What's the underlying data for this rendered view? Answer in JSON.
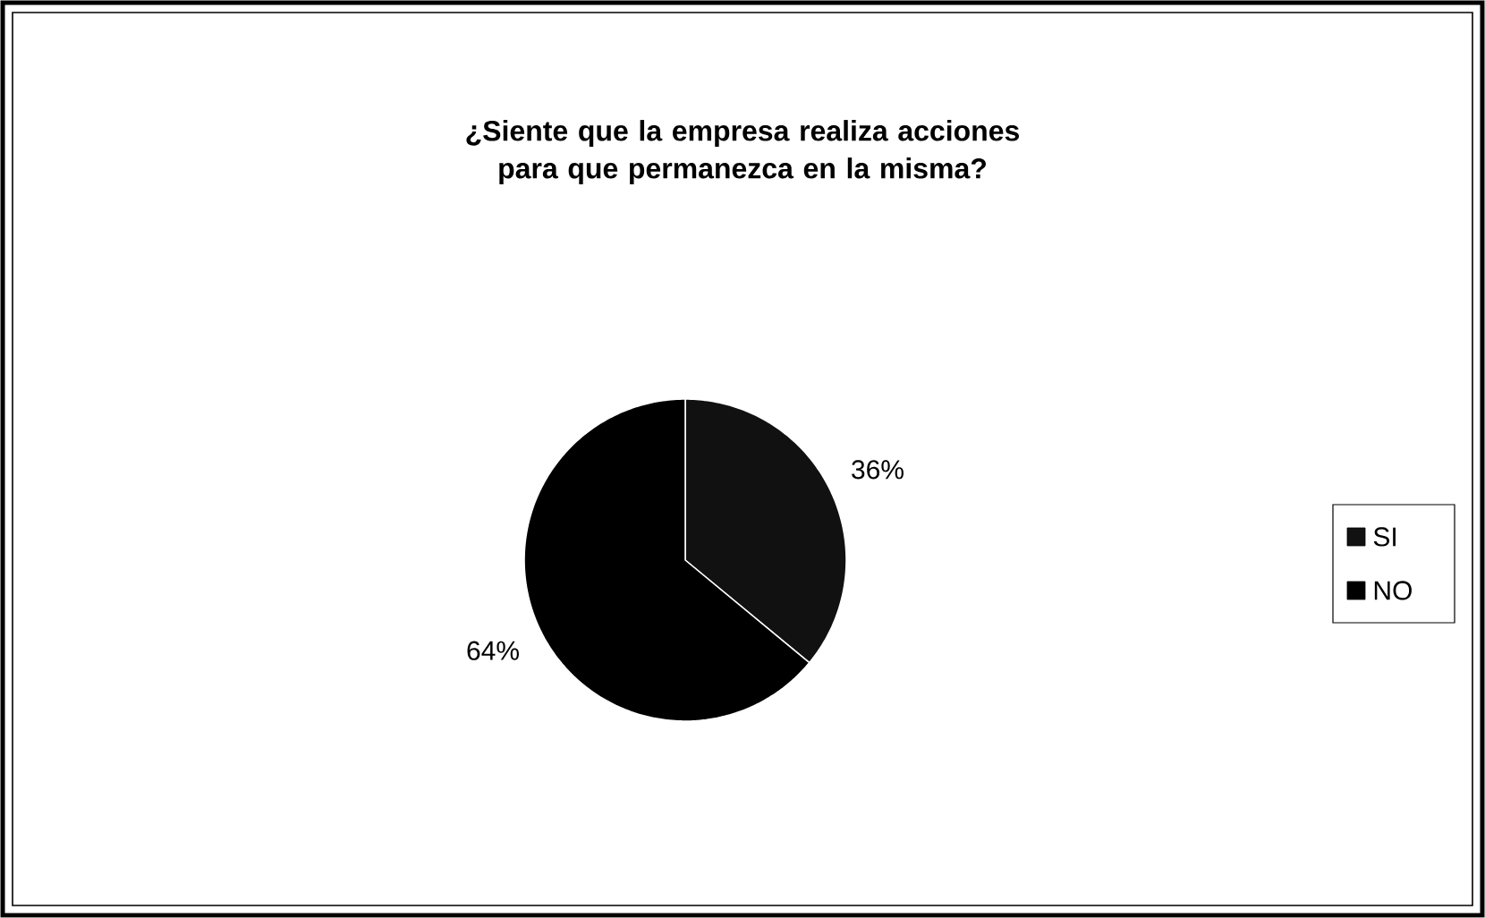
{
  "chart_data": {
    "type": "pie",
    "title": "¿Siente que la empresa realiza acciones para que permanezca en la misma?",
    "categories": [
      "SI",
      "NO"
    ],
    "values": [
      36,
      64
    ],
    "colors": [
      "#111111",
      "#000000"
    ],
    "value_labels": [
      "36%",
      "64%"
    ],
    "legend": "right"
  }
}
